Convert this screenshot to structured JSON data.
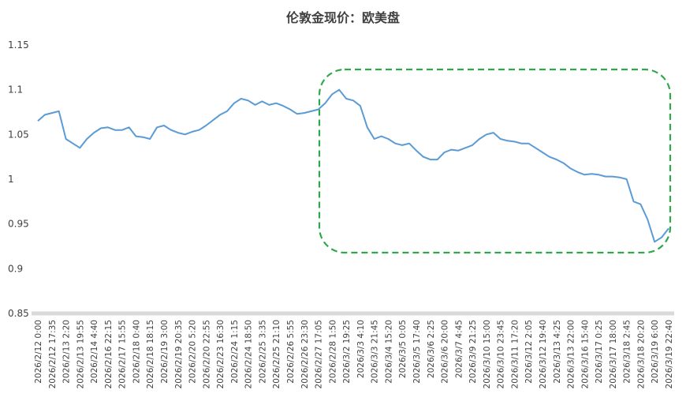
{
  "chart_data": {
    "type": "line",
    "title": "伦敦金现价：欧美盘",
    "categories": [
      "2026/2/12 0:00",
      null,
      "2026/2/12 17:35",
      null,
      "2026/2/13 2:20",
      null,
      "2026/2/13 19:55",
      null,
      "2026/2/14 4:40",
      null,
      "2026/2/16 22:15",
      null,
      "2026/2/17 15:55",
      null,
      "2026/2/18 0:40",
      null,
      "2026/2/18 18:15",
      null,
      "2026/2/19 3:00",
      null,
      "2026/2/19 20:35",
      null,
      "2026/2/20 5:20",
      null,
      "2026/2/20 22:55",
      null,
      "2026/2/23 16:30",
      null,
      "2026/2/24 1:15",
      null,
      "2026/2/24 18:50",
      null,
      "2026/2/25 3:35",
      null,
      "2026/2/25 21:10",
      null,
      "2026/2/26 5:55",
      null,
      "2026/2/26 23:30",
      null,
      "2026/2/27 17:05",
      null,
      "2026/2/28 1:50",
      null,
      "2026/3/2 19:25",
      null,
      "2026/3/3 4:10",
      null,
      "2026/3/3 21:45",
      null,
      "2026/3/4 15:20",
      null,
      "2026/3/5 0:05",
      null,
      "2026/3/5 17:40",
      null,
      "2026/3/6 2:25",
      null,
      "2026/3/6 20:00",
      null,
      "2026/3/7 4:45",
      null,
      "2026/3/9 21:25",
      null,
      "2026/3/10 15:00",
      null,
      "2026/3/10 23:45",
      null,
      "2026/3/11 17:20",
      null,
      "2026/3/12 2:05",
      null,
      "2026/3/12 19:40",
      null,
      "2026/3/13 4:25",
      null,
      "2026/3/13 22:00",
      null,
      "2026/3/16 15:40",
      null,
      "2026/3/17 0:25",
      null,
      "2026/3/17 18:00",
      null,
      "2026/3/18 2:45",
      null,
      "2026/3/18 20:20",
      null,
      "2026/3/19 6:00",
      null,
      "2026/3/19 22:40"
    ],
    "series": [
      {
        "color": "#5b9bd5",
        "values": [
          1.065,
          1.072,
          1.074,
          1.076,
          1.045,
          1.04,
          1.035,
          1.045,
          1.052,
          1.057,
          1.058,
          1.055,
          1.055,
          1.058,
          1.048,
          1.047,
          1.045,
          1.058,
          1.06,
          1.055,
          1.052,
          1.05,
          1.053,
          1.055,
          1.06,
          1.066,
          1.072,
          1.076,
          1.085,
          1.09,
          1.088,
          1.083,
          1.087,
          1.083,
          1.085,
          1.082,
          1.078,
          1.073,
          1.074,
          1.076,
          1.078,
          1.085,
          1.095,
          1.1,
          1.09,
          1.088,
          1.082,
          1.058,
          1.045,
          1.048,
          1.045,
          1.04,
          1.038,
          1.04,
          1.032,
          1.025,
          1.022,
          1.022,
          1.03,
          1.033,
          1.032,
          1.035,
          1.038,
          1.045,
          1.05,
          1.052,
          1.045,
          1.043,
          1.042,
          1.04,
          1.04,
          1.035,
          1.03,
          1.025,
          1.022,
          1.018,
          1.012,
          1.008,
          1.005,
          1.006,
          1.005,
          1.003,
          1.003,
          1.002,
          1.0,
          0.975,
          0.972,
          0.955,
          0.93,
          0.935,
          0.945
        ]
      }
    ],
    "ylim": [
      0.85,
      1.15
    ],
    "yticks": [
      0.85,
      0.9,
      0.95,
      1,
      1.05,
      1.1,
      1.15
    ],
    "grid": false
  }
}
